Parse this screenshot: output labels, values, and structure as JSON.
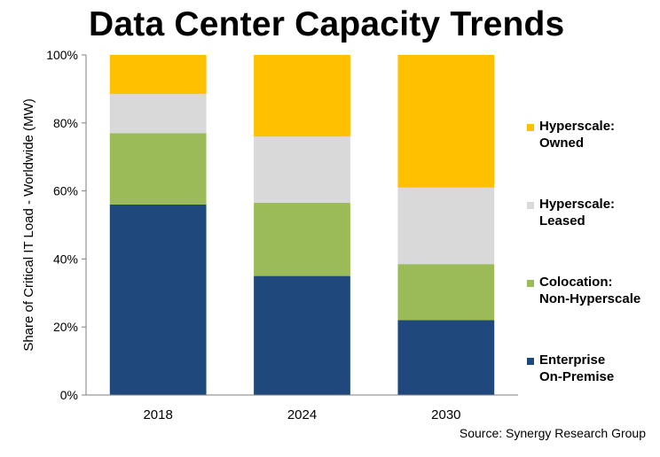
{
  "title": "Data Center Capacity Trends",
  "source": "Source: Synergy  Research Group",
  "chart_data": {
    "type": "bar",
    "stacked": true,
    "categories": [
      "2018",
      "2024",
      "2030"
    ],
    "ylabel": "Share of Critical IT Load - Worldwide (MW)",
    "xlabel": "",
    "ylim": [
      0,
      100
    ],
    "yticks": [
      "0%",
      "20%",
      "40%",
      "60%",
      "80%",
      "100%"
    ],
    "grid": false,
    "legend_position": "right",
    "series": [
      {
        "name": "Enterprise On-Premise",
        "legend_lines": [
          "Enterprise",
          "On-Premise"
        ],
        "color": "#1F497D",
        "values": [
          56,
          35,
          22
        ]
      },
      {
        "name": "Colocation: Non-Hyperscale",
        "legend_lines": [
          "Colocation:",
          "Non-Hyperscale"
        ],
        "color": "#9BBB59",
        "values": [
          21,
          21.5,
          16.5
        ]
      },
      {
        "name": "Hyperscale: Leased",
        "legend_lines": [
          "Hyperscale:",
          "Leased"
        ],
        "color": "#D9D9D9",
        "values": [
          11.5,
          19.5,
          22.5
        ]
      },
      {
        "name": "Hyperscale: Owned",
        "legend_lines": [
          "Hyperscale:",
          "Owned"
        ],
        "color": "#FFC000",
        "values": [
          11.5,
          24,
          39
        ]
      }
    ]
  }
}
